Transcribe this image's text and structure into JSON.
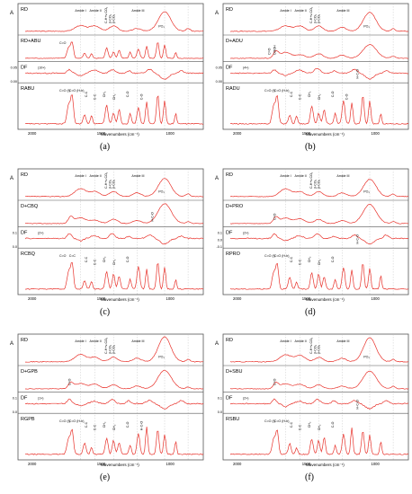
{
  "xaxis_title": "Wavenumbers (cm⁻¹)",
  "x_ticks": [
    "2000",
    "1500",
    "1000"
  ],
  "y_label": "A",
  "colors": {
    "trace": "#e8312a",
    "frame": "#555555",
    "vline": "#bbbbbb"
  },
  "chart_data": [
    {
      "type": "line",
      "label": "(a)",
      "rows": [
        {
          "name": "RD",
          "labels": [
            "Amide I",
            "Amide II",
            "C-H+ν-CO₂",
            "β-CO₃",
            "Amide III",
            "PO₄",
            "β-CO₃"
          ]
        },
        {
          "name": "RD+ABU",
          "labels": [
            "C=O"
          ]
        },
        {
          "name": "DF",
          "labels": [
            "(10×)"
          ],
          "ticks": [
            "0.05",
            "0.00"
          ]
        },
        {
          "name": "RABU",
          "labels": [
            "C=O (f)",
            "C=O (H-b)",
            "C-C",
            "C-C",
            "CH₂",
            "CH₂",
            "C-O",
            "C-O"
          ]
        }
      ]
    },
    {
      "type": "line",
      "label": "(b)",
      "rows": [
        {
          "name": "RD",
          "labels": [
            "Amide I",
            "Amide II",
            "C-H+ν-CO₂",
            "β-CO₃",
            "Amide III",
            "PO₄",
            "β-CO₃"
          ]
        },
        {
          "name": "D+ADU",
          "labels": [
            "COOH",
            "C=O"
          ]
        },
        {
          "name": "DF",
          "labels": [
            "(4×)",
            "H-C-O"
          ],
          "ticks": [
            "0.05",
            "0.00"
          ]
        },
        {
          "name": "RADU",
          "labels": [
            "C=O (f)",
            "C=O (H-b)",
            "C-C",
            "C-C",
            "CH₂",
            "CH₂",
            "C-O",
            "C-O"
          ]
        }
      ]
    },
    {
      "type": "line",
      "label": "(c)",
      "rows": [
        {
          "name": "RD",
          "labels": [
            "Amide I",
            "Amide II",
            "C-H+ν-CO₂",
            "β-CO₃",
            "Amide III",
            "PO₄",
            "β-CO₃"
          ]
        },
        {
          "name": "D+CBQ",
          "labels": [
            "H-C-O"
          ]
        },
        {
          "name": "DF",
          "labels": [
            "(2×)"
          ],
          "ticks": [
            "0.1",
            "0.0"
          ]
        },
        {
          "name": "RCBQ",
          "labels": [
            "C=O",
            "C=C",
            "C-C",
            "C-C",
            "CH₂",
            "CH₂",
            "C-O"
          ]
        }
      ]
    },
    {
      "type": "line",
      "label": "(d)",
      "rows": [
        {
          "name": "RD",
          "labels": [
            "Amide I",
            "Amide II",
            "C-H+ν-CO₂",
            "β-CO₃",
            "Amide III",
            "PO₄",
            "β-CO₃"
          ]
        },
        {
          "name": "D+PRO",
          "labels": [
            "C=O"
          ]
        },
        {
          "name": "DF",
          "labels": [
            "(2×)",
            "H-C-O"
          ],
          "ticks": [
            "0.1",
            "0.0",
            "-0.1"
          ]
        },
        {
          "name": "RPRO",
          "labels": [
            "C=O (f)",
            "C=O (H-b)",
            "C-C",
            "C-C",
            "CH₂",
            "CH₂",
            "C-O"
          ]
        }
      ]
    },
    {
      "type": "line",
      "label": "(e)",
      "rows": [
        {
          "name": "RD",
          "labels": [
            "Amide I",
            "Amide II",
            "C-H+ν-CO₂",
            "β-CO₃",
            "Amide III",
            "PO₄",
            "β-CO₃"
          ]
        },
        {
          "name": "D+GPB",
          "labels": [
            "C=O"
          ]
        },
        {
          "name": "DF",
          "labels": [
            "(1×)"
          ],
          "ticks": [
            "0.1",
            "0.0"
          ]
        },
        {
          "name": "RGPB",
          "labels": [
            "C=O (f)",
            "C=O (H-b)",
            "C-C",
            "C-C",
            "CH₂",
            "CH₂",
            "C-O",
            "H-C-O"
          ]
        }
      ]
    },
    {
      "type": "line",
      "label": "(f)",
      "rows": [
        {
          "name": "RD",
          "labels": [
            "Amide I",
            "Amide II",
            "C-H+ν-CO₂",
            "β-CO₃",
            "Amide III",
            "PO₄",
            "β-CO₃"
          ]
        },
        {
          "name": "D+SBU",
          "labels": [
            "C=O"
          ]
        },
        {
          "name": "DF",
          "labels": [
            "(2×)",
            "H-C-O"
          ],
          "ticks": [
            "0.1",
            "0.0"
          ]
        },
        {
          "name": "RSBU",
          "labels": [
            "C=O (f)",
            "C=O (H-b)",
            "C-C",
            "C-C",
            "CH₂",
            "CH₂",
            "C-O"
          ]
        }
      ]
    }
  ]
}
